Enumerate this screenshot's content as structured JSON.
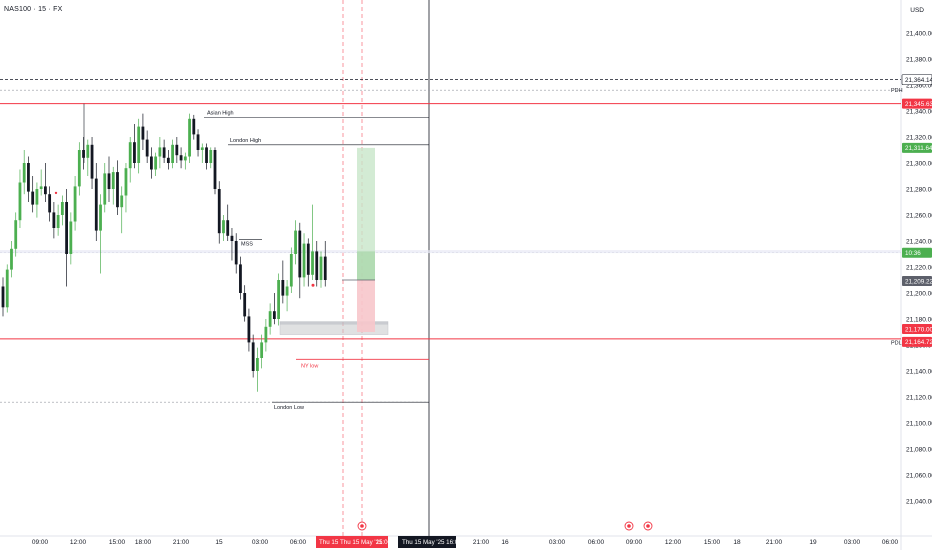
{
  "header": {
    "symbol_title": "NAS100 · 15 · FX",
    "currency": "USD"
  },
  "colors": {
    "up": "#4caf50",
    "down": "#131722",
    "red_line": "#f23645",
    "green_box": "#c8e6c9",
    "red_box": "#f7c6cb",
    "grey_zone": "#c8c9cc",
    "crosshair": "#131722",
    "dashed_red": "#f77c87"
  },
  "chart_data": {
    "type": "candlestick",
    "y_axis": {
      "min": 21040,
      "max": 21420,
      "ticks": [
        "21,040.00",
        "21,060.00",
        "21,080.00",
        "21,100.00",
        "21,120.00",
        "21,140.00",
        "21,160.00",
        "21,180.00",
        "21,200.00",
        "21,220.00",
        "21,240.00",
        "21,260.00",
        "21,280.00",
        "21,300.00",
        "21,320.00",
        "21,340.00",
        "21,360.00",
        "21,380.00",
        "21,400.00"
      ],
      "tick_values": [
        21040,
        21060,
        21080,
        21100,
        21120,
        21140,
        21160,
        21180,
        21200,
        21220,
        21240,
        21260,
        21280,
        21300,
        21320,
        21340,
        21360,
        21380,
        21400
      ]
    },
    "x_axis": {
      "labels": [
        "09:00",
        "12:00",
        "15:00",
        "18:00",
        "21:00",
        "15",
        "03:00",
        "06:00",
        "21:00",
        "16",
        "03:00",
        "06:00",
        "09:00",
        "12:00",
        "15:00",
        "18",
        "21:00",
        "19",
        "03:00",
        "06:00"
      ],
      "highlight_labels": [
        "Thu 15",
        "Thu 15 May '25",
        "11:00"
      ],
      "crosshair_label": "Thu 15 May '25   16:00"
    },
    "price_labels": [
      {
        "value": 21364.14,
        "text": "21,364.14",
        "style": "dark-outline"
      },
      {
        "value": 21345.63,
        "text": "21,345.63",
        "style": "red"
      },
      {
        "value": 21311.64,
        "text": "21,311.64",
        "style": "green"
      },
      {
        "value": 21231,
        "text": "10:36",
        "style": "green"
      },
      {
        "value": 21209.22,
        "text": "21,209.22",
        "style": "grey"
      },
      {
        "value": 21170.0,
        "text": "21,170.00",
        "style": "red"
      },
      {
        "value": 21164.72,
        "text": "21,164.72",
        "style": "red"
      }
    ],
    "side_labels": [
      {
        "value": 21356,
        "text": "PDH"
      },
      {
        "value": 21162,
        "text": "PDL"
      }
    ],
    "annotations": [
      {
        "text": "Asian High",
        "value": 21335
      },
      {
        "text": "London High",
        "value": 21314
      },
      {
        "text": "MSS",
        "value": 21241
      },
      {
        "text": "NY low",
        "value": 21149
      },
      {
        "text": "London Low",
        "value": 21116
      }
    ],
    "candles": [
      [
        21205,
        21212,
        21182,
        21189
      ],
      [
        21189,
        21222,
        21185,
        21218
      ],
      [
        21218,
        21240,
        21212,
        21234
      ],
      [
        21234,
        21262,
        21228,
        21256
      ],
      [
        21256,
        21295,
        21250,
        21285
      ],
      [
        21285,
        21310,
        21276,
        21300
      ],
      [
        21300,
        21305,
        21270,
        21278
      ],
      [
        21278,
        21290,
        21262,
        21268
      ],
      [
        21268,
        21285,
        21258,
        21280
      ],
      [
        21280,
        21295,
        21275,
        21282
      ],
      [
        21282,
        21300,
        21270,
        21276
      ],
      [
        21276,
        21282,
        21255,
        21262
      ],
      [
        21262,
        21270,
        21242,
        21250
      ],
      [
        21250,
        21268,
        21244,
        21260
      ],
      [
        21260,
        21275,
        21252,
        21270
      ],
      [
        21270,
        21280,
        21205,
        21230
      ],
      [
        21230,
        21262,
        21222,
        21255
      ],
      [
        21255,
        21290,
        21248,
        21282
      ],
      [
        21282,
        21316,
        21275,
        21310
      ],
      [
        21310,
        21320,
        21295,
        21304
      ],
      [
        21304,
        21318,
        21290,
        21314
      ],
      [
        21314,
        21320,
        21280,
        21288
      ],
      [
        21288,
        21300,
        21240,
        21248
      ],
      [
        21248,
        21276,
        21215,
        21268
      ],
      [
        21268,
        21300,
        21262,
        21292
      ],
      [
        21292,
        21305,
        21270,
        21280
      ],
      [
        21280,
        21297,
        21268,
        21293
      ],
      [
        21293,
        21302,
        21260,
        21266
      ],
      [
        21266,
        21282,
        21246,
        21275
      ],
      [
        21275,
        21300,
        21262,
        21296
      ],
      [
        21296,
        21320,
        21285,
        21316
      ],
      [
        21316,
        21330,
        21296,
        21300
      ],
      [
        21300,
        21334,
        21292,
        21328
      ],
      [
        21328,
        21338,
        21310,
        21318
      ],
      [
        21318,
        21325,
        21300,
        21305
      ],
      [
        21305,
        21312,
        21288,
        21295
      ],
      [
        21295,
        21308,
        21290,
        21305
      ],
      [
        21305,
        21320,
        21296,
        21312
      ],
      [
        21312,
        21318,
        21300,
        21304
      ],
      [
        21304,
        21310,
        21295,
        21300
      ],
      [
        21300,
        21318,
        21296,
        21314
      ],
      [
        21314,
        21320,
        21300,
        21306
      ],
      [
        21306,
        21312,
        21296,
        21302
      ],
      [
        21302,
        21308,
        21295,
        21305
      ],
      [
        21305,
        21338,
        21300,
        21334
      ],
      [
        21334,
        21337,
        21318,
        21322
      ],
      [
        21322,
        21326,
        21305,
        21310
      ],
      [
        21310,
        21315,
        21300,
        21312
      ],
      [
        21312,
        21315,
        21295,
        21300
      ],
      [
        21300,
        21312,
        21296,
        21310
      ],
      [
        21310,
        21312,
        21276,
        21280
      ],
      [
        21280,
        21286,
        21238,
        21246
      ],
      [
        21246,
        21260,
        21240,
        21256
      ],
      [
        21256,
        21268,
        21240,
        21244
      ],
      [
        21244,
        21250,
        21225,
        21240
      ],
      [
        21240,
        21246,
        21215,
        21222
      ],
      [
        21222,
        21228,
        21195,
        21200
      ],
      [
        21200,
        21206,
        21178,
        21182
      ],
      [
        21182,
        21188,
        21155,
        21162
      ],
      [
        21162,
        21168,
        21135,
        21140
      ],
      [
        21140,
        21158,
        21124,
        21150
      ],
      [
        21150,
        21168,
        21142,
        21162
      ],
      [
        21162,
        21180,
        21155,
        21174
      ],
      [
        21174,
        21192,
        21168,
        21186
      ],
      [
        21186,
        21200,
        21176,
        21180
      ],
      [
        21180,
        21215,
        21175,
        21210
      ],
      [
        21210,
        21225,
        21192,
        21198
      ],
      [
        21198,
        21210,
        21186,
        21205
      ],
      [
        21205,
        21235,
        21200,
        21230
      ],
      [
        21230,
        21256,
        21222,
        21248
      ],
      [
        21248,
        21254,
        21196,
        21212
      ],
      [
        21212,
        21246,
        21205,
        21238
      ],
      [
        21238,
        21242,
        21205,
        21214
      ],
      [
        21214,
        21268,
        21210,
        21232
      ],
      [
        21232,
        21240,
        21205,
        21210
      ],
      [
        21210,
        21232,
        21204,
        21228
      ],
      [
        21228,
        21240,
        21205,
        21210
      ]
    ]
  }
}
